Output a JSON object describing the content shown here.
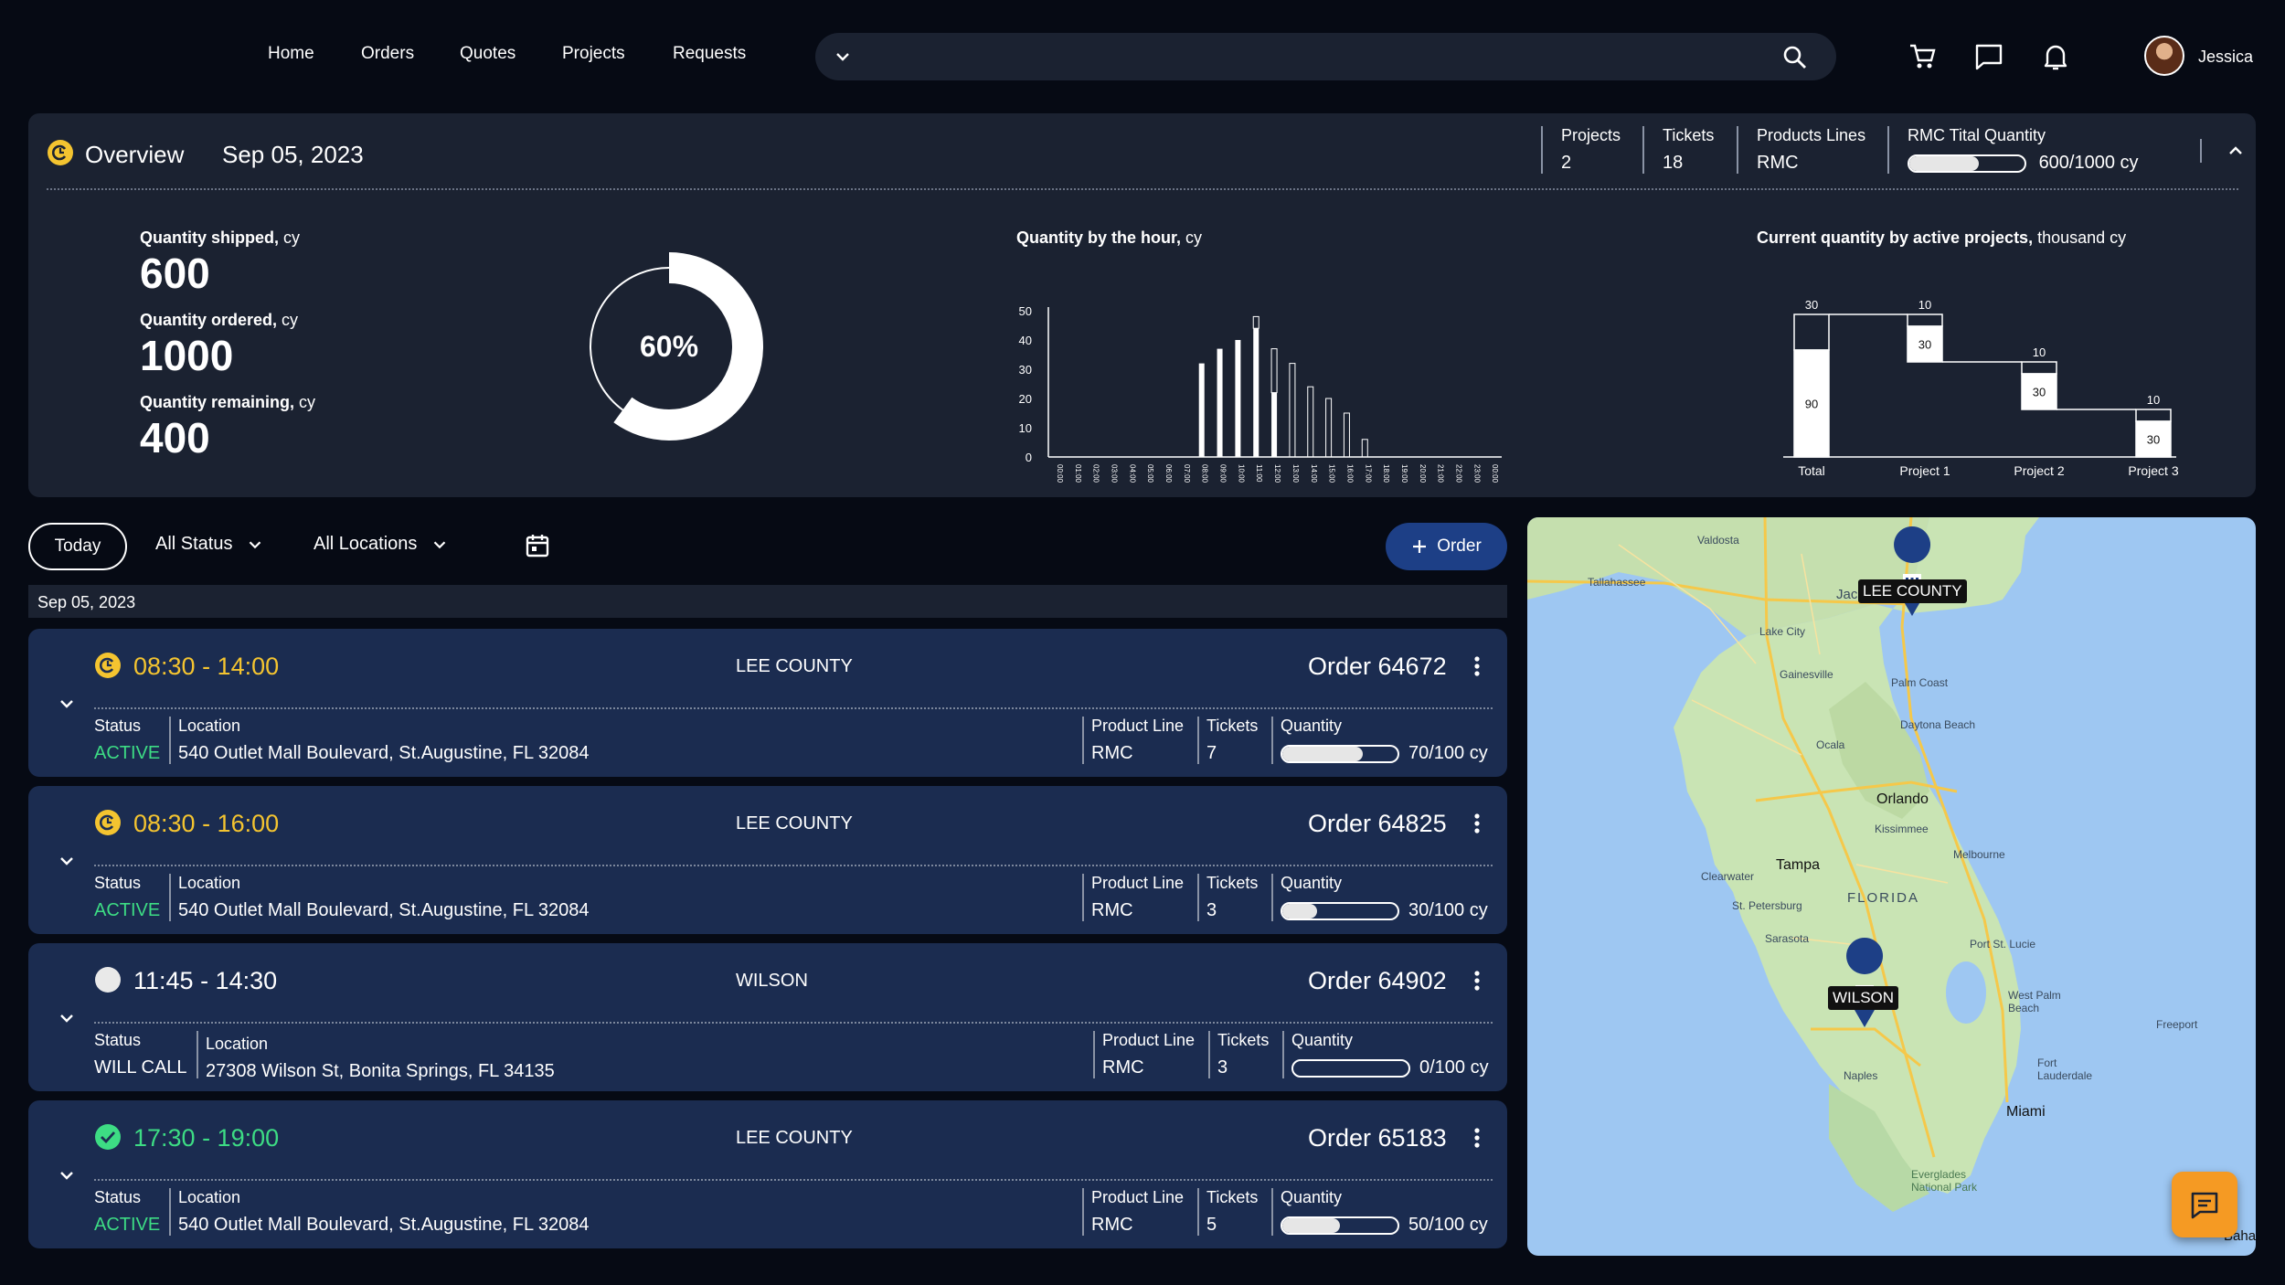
{
  "nav": {
    "links": [
      "Home",
      "Orders",
      "Quotes",
      "Projects",
      "Requests"
    ],
    "user_name": "Jessica",
    "icons": [
      "chevron-down-icon",
      "search-icon",
      "cart-icon",
      "message-icon",
      "bell-icon"
    ]
  },
  "overview": {
    "title": "Overview",
    "date": "Sep 05, 2023",
    "stats": {
      "projects_label": "Projects",
      "projects_value": "2",
      "tickets_label": "Tickets",
      "tickets_value": "18",
      "product_lines_label": "Products Lines",
      "product_lines_value": "RMC",
      "rmc_label": "RMC Tital Quantity",
      "rmc_value": "600/1000 cy",
      "rmc_fraction": 0.6
    },
    "quantities": {
      "shipped_label": "Quantity shipped,",
      "shipped_unit": "cy",
      "shipped_value": "600",
      "ordered_label": "Quantity ordered,",
      "ordered_unit": "cy",
      "ordered_value": "1000",
      "remaining_label": "Quantity remaining,",
      "remaining_unit": "cy",
      "remaining_value": "400"
    },
    "donut_label": "60%",
    "donut_fraction": 0.6
  },
  "chart_data": [
    {
      "type": "bar",
      "title": "Quantity by the hour,",
      "title_unit": "cy",
      "categories": [
        "00:00",
        "01:00",
        "02:00",
        "03:00",
        "04:00",
        "05:00",
        "06:00",
        "07:00",
        "08:00",
        "09:00",
        "10:00",
        "11:00",
        "12:00",
        "13:00",
        "14:00",
        "15:00",
        "16:00",
        "17:00",
        "18:00",
        "19:00",
        "20:00",
        "21:00",
        "22:00",
        "23:00",
        "00:00"
      ],
      "series": [
        {
          "values": [
            0,
            0,
            0,
            0,
            0,
            0,
            0,
            0,
            32,
            37,
            40,
            44,
            22,
            0,
            0,
            0,
            0,
            0,
            0,
            0,
            0,
            0,
            0,
            0,
            0
          ]
        },
        {
          "values": [
            0,
            0,
            0,
            0,
            0,
            0,
            0,
            0,
            0,
            0,
            0,
            4,
            15,
            32,
            24,
            20,
            15,
            6,
            0,
            0,
            0,
            0,
            0,
            0,
            0
          ]
        }
      ],
      "yticks": [
        0,
        10,
        20,
        30,
        40,
        50
      ],
      "ylim": [
        0,
        50
      ]
    },
    {
      "type": "bar",
      "title": "Current quantity by active projects,",
      "title_unit": "thousand cy",
      "categories": [
        "Total",
        "Project 1",
        "Project 2",
        "Project 3"
      ],
      "series": [
        {
          "values": [
            90,
            30,
            30,
            30
          ]
        },
        {
          "values": [
            30,
            10,
            10,
            10
          ]
        }
      ],
      "data_labels_lower": [
        "90",
        "30",
        "30",
        "30"
      ],
      "data_labels_upper": [
        "30",
        "10",
        "10",
        "10"
      ]
    }
  ],
  "filters": {
    "today": "Today",
    "status": "All Status",
    "locations": "All Locations",
    "order_button": "Order",
    "date_header": "Sep 05, 2023"
  },
  "orders": [
    {
      "time": "08:30 - 14:00",
      "location_name": "LEE COUNTY",
      "order_no": "Order 64672",
      "status_label": "Status",
      "status": "ACTIVE",
      "location_label": "Location",
      "address": "540 Outlet Mall Boulevard, St.Augustine, FL 32084",
      "product_line_label": "Product Line",
      "product_line": "RMC",
      "tickets_label": "Tickets",
      "tickets": "7",
      "quantity_label": "Quantity",
      "quantity": "70/100 cy",
      "fraction": 0.7,
      "state": "in-progress"
    },
    {
      "time": "08:30 - 16:00",
      "location_name": "LEE COUNTY",
      "order_no": "Order 64825",
      "status_label": "Status",
      "status": "ACTIVE",
      "location_label": "Location",
      "address": "540 Outlet Mall Boulevard, St.Augustine, FL 32084",
      "product_line_label": "Product Line",
      "product_line": "RMC",
      "tickets_label": "Tickets",
      "tickets": "3",
      "quantity_label": "Quantity",
      "quantity": "30/100 cy",
      "fraction": 0.3,
      "state": "in-progress"
    },
    {
      "time": "11:45 - 14:30",
      "location_name": "WILSON",
      "order_no": "Order 64902",
      "status_label": "Status",
      "status": "WILL CALL",
      "location_label": "Location",
      "address": "27308 Wilson St, Bonita Springs, FL 34135",
      "product_line_label": "Product Line",
      "product_line": "RMC",
      "tickets_label": "Tickets",
      "tickets": "3",
      "quantity_label": "Quantity",
      "quantity": "0/100 cy",
      "fraction": 0.0,
      "state": "pending"
    },
    {
      "time": "17:30 - 19:00",
      "location_name": "LEE COUNTY",
      "order_no": "Order 65183",
      "status_label": "Status",
      "status": "ACTIVE",
      "location_label": "Location",
      "address": "540 Outlet Mall Boulevard, St.Augustine, FL 32084",
      "product_line_label": "Product Line",
      "product_line": "RMC",
      "tickets_label": "Tickets",
      "tickets": "5",
      "quantity_label": "Quantity",
      "quantity": "50/100 cy",
      "fraction": 0.5,
      "state": "complete"
    }
  ],
  "map": {
    "marker_labels": [
      "LEE COUNTY",
      "WILSON"
    ],
    "place_labels": [
      "Valdosta",
      "Tallahassee",
      "Jac",
      "Lake City",
      "Gainesville",
      "Palm Coast",
      "Daytona Beach",
      "Ocala",
      "Orlando",
      "Kissimmee",
      "Melbourne",
      "Clearwater",
      "Tampa",
      "St. Petersburg",
      "FLORIDA",
      "Sarasota",
      "Port St. Lucie",
      "West Palm Beach",
      "Freeport",
      "Fort Lauderdale",
      "Naples",
      "Miami",
      "Everglades National Park",
      "Bahar"
    ],
    "colors": {
      "water": "#9ec7f2",
      "land": "#c9e4b4",
      "marker": "#1d3f86"
    }
  },
  "colors": {
    "accent_gold": "#f4c430",
    "active_green": "#3ddc84",
    "card_bg": "#1b2c50",
    "panel_bg": "#1b2231",
    "fab": "#f59a23"
  }
}
